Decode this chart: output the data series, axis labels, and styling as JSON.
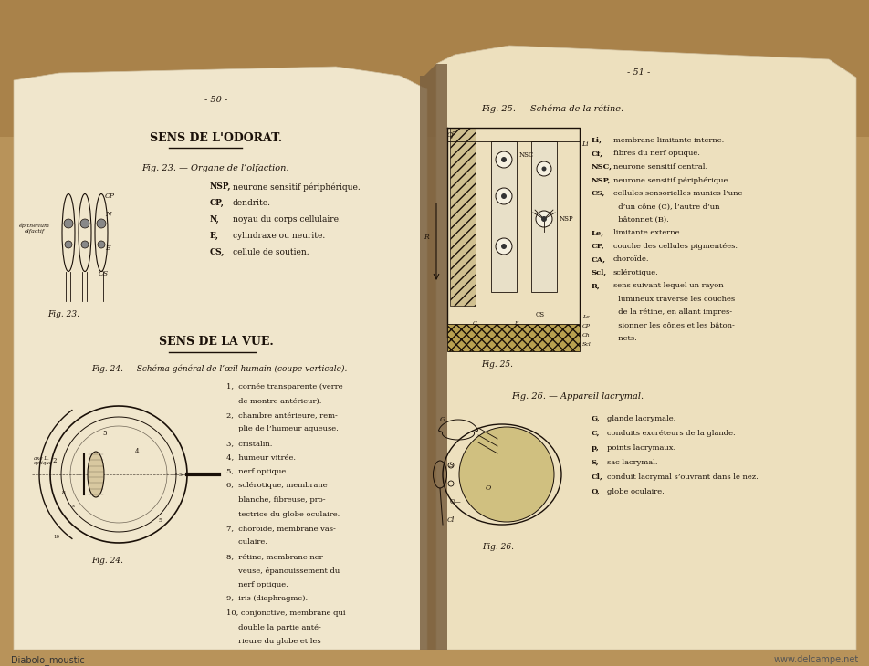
{
  "bg_color": "#b8935a",
  "bg_top_color": "#c8a070",
  "page_left_color": "#f0e6cc",
  "page_right_color": "#ede0be",
  "spine_shadow": "#7a5520",
  "text_color": "#1a1008",
  "watermark_left": "Diabolo_moustic",
  "watermark_right": "www.delcampe.net",
  "page_num_left": "- 50 -",
  "page_num_right": "- 51 -",
  "title_left": "SENS DE L'ODORAT.",
  "subtitle_left1": "Fig. 23. — Organe de l’olfaction.",
  "title_left2": "SENS DE LA VUE.",
  "subtitle_left2": "Fig. 24. — Schéma général de l’œil humain (coupe verticale).",
  "subtitle_right1": "Fig. 25. — Schéma de la rétine.",
  "subtitle_right2": "Fig. 26. — Appareil lacrymal.",
  "fig23_label": "Fig. 23.",
  "fig24_label": "Fig. 24.",
  "fig25_label": "Fig. 25.",
  "fig26_label": "Fig. 26."
}
